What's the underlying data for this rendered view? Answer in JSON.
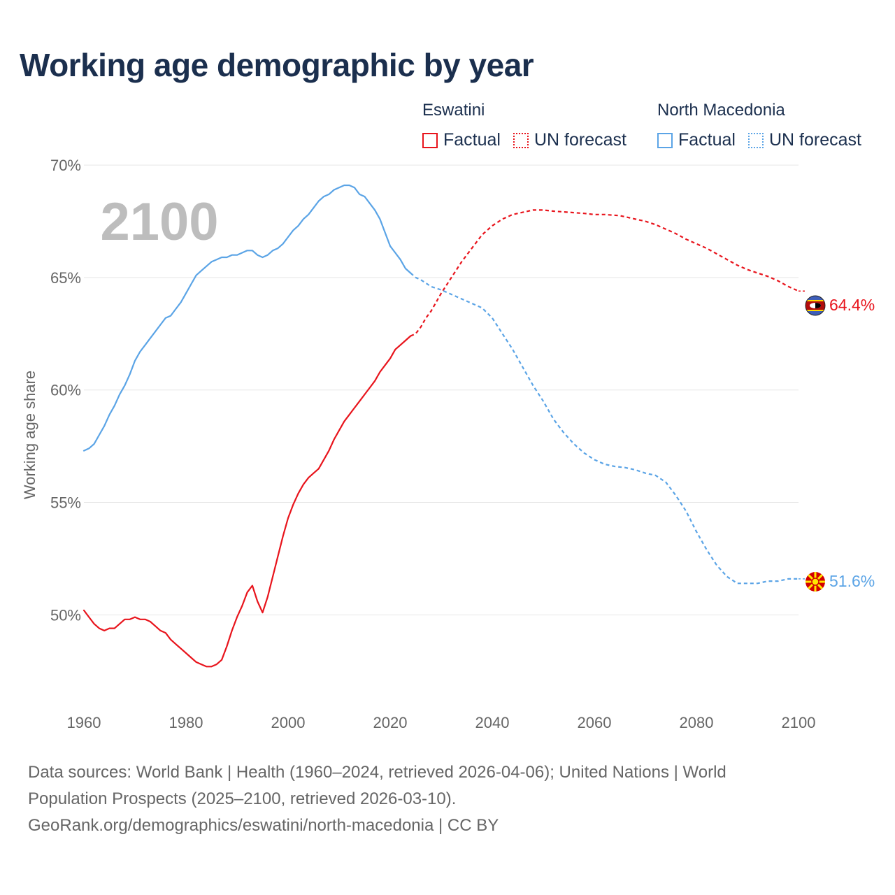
{
  "title": "Working age demographic by year",
  "legend": [
    {
      "country": "Eswatini",
      "color": "#e8141c",
      "factual_label": "Factual",
      "forecast_label": "UN forecast"
    },
    {
      "country": "North Macedonia",
      "color": "#5ba4e6",
      "factual_label": "Factual",
      "forecast_label": "UN forecast"
    }
  ],
  "sources": {
    "line1": "Data sources: World Bank | Health (1960–2024, retrieved 2026-04-06); United Nations | World",
    "line2": "Population Prospects (2025–2100, retrieved 2026-03-10).",
    "line3": "GeoRank.org/demographics/eswatini/north-macedonia | CC BY"
  },
  "chart_data": {
    "type": "line",
    "ylabel": "Working age share",
    "xlabel": "",
    "year_watermark": "2100",
    "xlim": [
      1960,
      2100
    ],
    "ylim": [
      46,
      70.5
    ],
    "x_ticks": [
      1960,
      1980,
      2000,
      2020,
      2040,
      2060,
      2080,
      2100
    ],
    "x_tick_labels": [
      "1960",
      "1980",
      "2000",
      "2020",
      "2040",
      "2060",
      "2080",
      "2100"
    ],
    "y_ticks": [
      50,
      55,
      60,
      65,
      70
    ],
    "y_tick_labels": [
      "50%",
      "55%",
      "60%",
      "65%",
      "70%"
    ],
    "forecast_start_year": 2024,
    "series": [
      {
        "name": "Eswatini",
        "color": "#e8141c",
        "end_label": "64.4%",
        "points": [
          [
            1960,
            50.2
          ],
          [
            1961,
            49.9
          ],
          [
            1962,
            49.6
          ],
          [
            1963,
            49.4
          ],
          [
            1964,
            49.3
          ],
          [
            1965,
            49.4
          ],
          [
            1966,
            49.4
          ],
          [
            1967,
            49.6
          ],
          [
            1968,
            49.8
          ],
          [
            1969,
            49.8
          ],
          [
            1970,
            49.9
          ],
          [
            1971,
            49.8
          ],
          [
            1972,
            49.8
          ],
          [
            1973,
            49.7
          ],
          [
            1974,
            49.5
          ],
          [
            1975,
            49.3
          ],
          [
            1976,
            49.2
          ],
          [
            1977,
            48.9
          ],
          [
            1978,
            48.7
          ],
          [
            1979,
            48.5
          ],
          [
            1980,
            48.3
          ],
          [
            1981,
            48.1
          ],
          [
            1982,
            47.9
          ],
          [
            1983,
            47.8
          ],
          [
            1984,
            47.7
          ],
          [
            1985,
            47.7
          ],
          [
            1986,
            47.8
          ],
          [
            1987,
            48.0
          ],
          [
            1988,
            48.6
          ],
          [
            1989,
            49.3
          ],
          [
            1990,
            49.9
          ],
          [
            1991,
            50.4
          ],
          [
            1992,
            51.0
          ],
          [
            1993,
            51.3
          ],
          [
            1994,
            50.6
          ],
          [
            1995,
            50.1
          ],
          [
            1996,
            50.8
          ],
          [
            1997,
            51.7
          ],
          [
            1998,
            52.6
          ],
          [
            1999,
            53.5
          ],
          [
            2000,
            54.3
          ],
          [
            2001,
            54.9
          ],
          [
            2002,
            55.4
          ],
          [
            2003,
            55.8
          ],
          [
            2004,
            56.1
          ],
          [
            2005,
            56.3
          ],
          [
            2006,
            56.5
          ],
          [
            2007,
            56.9
          ],
          [
            2008,
            57.3
          ],
          [
            2009,
            57.8
          ],
          [
            2010,
            58.2
          ],
          [
            2011,
            58.6
          ],
          [
            2012,
            58.9
          ],
          [
            2013,
            59.2
          ],
          [
            2014,
            59.5
          ],
          [
            2015,
            59.8
          ],
          [
            2016,
            60.1
          ],
          [
            2017,
            60.4
          ],
          [
            2018,
            60.8
          ],
          [
            2019,
            61.1
          ],
          [
            2020,
            61.4
          ],
          [
            2021,
            61.8
          ],
          [
            2022,
            62.0
          ],
          [
            2023,
            62.2
          ],
          [
            2024,
            62.4
          ],
          [
            2025,
            62.5
          ],
          [
            2026,
            62.8
          ],
          [
            2027,
            63.2
          ],
          [
            2028,
            63.5
          ],
          [
            2029,
            63.9
          ],
          [
            2030,
            64.3
          ],
          [
            2032,
            65.0
          ],
          [
            2034,
            65.7
          ],
          [
            2036,
            66.3
          ],
          [
            2038,
            66.9
          ],
          [
            2040,
            67.3
          ],
          [
            2042,
            67.6
          ],
          [
            2044,
            67.8
          ],
          [
            2046,
            67.9
          ],
          [
            2048,
            68.0
          ],
          [
            2050,
            68.0
          ],
          [
            2052,
            67.95
          ],
          [
            2055,
            67.9
          ],
          [
            2058,
            67.85
          ],
          [
            2060,
            67.8
          ],
          [
            2062,
            67.8
          ],
          [
            2065,
            67.75
          ],
          [
            2068,
            67.6
          ],
          [
            2070,
            67.5
          ],
          [
            2072,
            67.35
          ],
          [
            2074,
            67.15
          ],
          [
            2076,
            66.95
          ],
          [
            2078,
            66.7
          ],
          [
            2080,
            66.5
          ],
          [
            2082,
            66.3
          ],
          [
            2084,
            66.05
          ],
          [
            2086,
            65.8
          ],
          [
            2088,
            65.55
          ],
          [
            2090,
            65.35
          ],
          [
            2092,
            65.2
          ],
          [
            2094,
            65.05
          ],
          [
            2096,
            64.85
          ],
          [
            2098,
            64.6
          ],
          [
            2100,
            64.4
          ]
        ]
      },
      {
        "name": "North Macedonia",
        "color": "#5ba4e6",
        "end_label": "51.6%",
        "points": [
          [
            1960,
            57.3
          ],
          [
            1961,
            57.4
          ],
          [
            1962,
            57.6
          ],
          [
            1963,
            58.0
          ],
          [
            1964,
            58.4
          ],
          [
            1965,
            58.9
          ],
          [
            1966,
            59.3
          ],
          [
            1967,
            59.8
          ],
          [
            1968,
            60.2
          ],
          [
            1969,
            60.7
          ],
          [
            1970,
            61.3
          ],
          [
            1971,
            61.7
          ],
          [
            1972,
            62.0
          ],
          [
            1973,
            62.3
          ],
          [
            1974,
            62.6
          ],
          [
            1975,
            62.9
          ],
          [
            1976,
            63.2
          ],
          [
            1977,
            63.3
          ],
          [
            1978,
            63.6
          ],
          [
            1979,
            63.9
          ],
          [
            1980,
            64.3
          ],
          [
            1981,
            64.7
          ],
          [
            1982,
            65.1
          ],
          [
            1983,
            65.3
          ],
          [
            1984,
            65.5
          ],
          [
            1985,
            65.7
          ],
          [
            1986,
            65.8
          ],
          [
            1987,
            65.9
          ],
          [
            1988,
            65.9
          ],
          [
            1989,
            66.0
          ],
          [
            1990,
            66.0
          ],
          [
            1991,
            66.1
          ],
          [
            1992,
            66.2
          ],
          [
            1993,
            66.2
          ],
          [
            1994,
            66.0
          ],
          [
            1995,
            65.9
          ],
          [
            1996,
            66.0
          ],
          [
            1997,
            66.2
          ],
          [
            1998,
            66.3
          ],
          [
            1999,
            66.5
          ],
          [
            2000,
            66.8
          ],
          [
            2001,
            67.1
          ],
          [
            2002,
            67.3
          ],
          [
            2003,
            67.6
          ],
          [
            2004,
            67.8
          ],
          [
            2005,
            68.1
          ],
          [
            2006,
            68.4
          ],
          [
            2007,
            68.6
          ],
          [
            2008,
            68.7
          ],
          [
            2009,
            68.9
          ],
          [
            2010,
            69.0
          ],
          [
            2011,
            69.1
          ],
          [
            2012,
            69.1
          ],
          [
            2013,
            69.0
          ],
          [
            2014,
            68.7
          ],
          [
            2015,
            68.6
          ],
          [
            2016,
            68.3
          ],
          [
            2017,
            68.0
          ],
          [
            2018,
            67.6
          ],
          [
            2019,
            67.0
          ],
          [
            2020,
            66.4
          ],
          [
            2021,
            66.1
          ],
          [
            2022,
            65.8
          ],
          [
            2023,
            65.4
          ],
          [
            2024,
            65.2
          ],
          [
            2025,
            65.0
          ],
          [
            2026,
            64.9
          ],
          [
            2027,
            64.75
          ],
          [
            2028,
            64.6
          ],
          [
            2030,
            64.45
          ],
          [
            2032,
            64.25
          ],
          [
            2034,
            64.05
          ],
          [
            2036,
            63.85
          ],
          [
            2038,
            63.65
          ],
          [
            2040,
            63.2
          ],
          [
            2042,
            62.5
          ],
          [
            2044,
            61.8
          ],
          [
            2046,
            61.0
          ],
          [
            2048,
            60.2
          ],
          [
            2050,
            59.5
          ],
          [
            2052,
            58.7
          ],
          [
            2054,
            58.1
          ],
          [
            2056,
            57.6
          ],
          [
            2058,
            57.2
          ],
          [
            2060,
            56.9
          ],
          [
            2062,
            56.7
          ],
          [
            2064,
            56.6
          ],
          [
            2066,
            56.55
          ],
          [
            2068,
            56.45
          ],
          [
            2070,
            56.3
          ],
          [
            2072,
            56.2
          ],
          [
            2074,
            55.9
          ],
          [
            2076,
            55.3
          ],
          [
            2078,
            54.6
          ],
          [
            2080,
            53.7
          ],
          [
            2082,
            52.9
          ],
          [
            2084,
            52.2
          ],
          [
            2086,
            51.7
          ],
          [
            2088,
            51.4
          ],
          [
            2090,
            51.4
          ],
          [
            2092,
            51.4
          ],
          [
            2094,
            51.5
          ],
          [
            2096,
            51.5
          ],
          [
            2098,
            51.6
          ],
          [
            2100,
            51.6
          ]
        ]
      }
    ]
  }
}
